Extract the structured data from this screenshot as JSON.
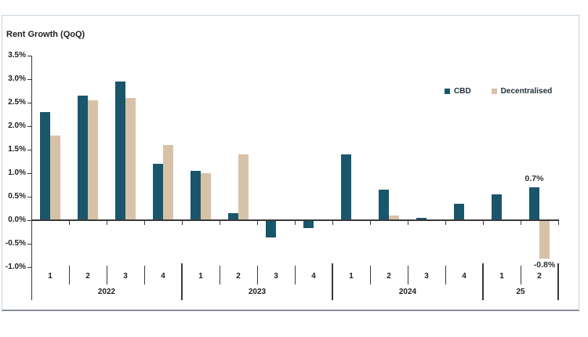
{
  "chart_data": {
    "type": "bar",
    "title": "Rent Growth (QoQ)",
    "ylabel": "Rent Growth (QoQ)",
    "ylim": [
      -1.0,
      3.5
    ],
    "ytick_step": 0.5,
    "ytick_labels": [
      "3.5%",
      "3.0%",
      "2.5%",
      "2.0%",
      "1.5%",
      "1.0%",
      "0.5%",
      "0.0%",
      "-0.5%",
      "-1.0%"
    ],
    "grid": false,
    "legend_position": "top-right",
    "groups": [
      {
        "year": "2022",
        "quarters": [
          "1",
          "2",
          "3",
          "4"
        ]
      },
      {
        "year": "2023",
        "quarters": [
          "1",
          "2",
          "3",
          "4"
        ]
      },
      {
        "year": "2024",
        "quarters": [
          "1",
          "2",
          "3",
          "4"
        ]
      },
      {
        "year": "25",
        "quarters": [
          "1",
          "2"
        ]
      }
    ],
    "series": [
      {
        "name": "CBD",
        "color": "#1a566b",
        "values": [
          2.3,
          2.65,
          2.95,
          1.2,
          1.05,
          0.15,
          -0.35,
          -0.15,
          1.4,
          0.65,
          0.05,
          0.35,
          0.55,
          0.7
        ]
      },
      {
        "name": "Decentralised",
        "color": "#d8c2a7",
        "values": [
          1.8,
          2.55,
          2.6,
          1.6,
          1.0,
          1.4,
          0,
          0,
          0,
          0.1,
          0,
          0,
          0,
          -0.8
        ]
      }
    ],
    "point_labels": [
      {
        "series": "CBD",
        "index": 13,
        "text": "0.7%",
        "position": "above"
      },
      {
        "series": "Decentralised",
        "index": 13,
        "text": "-0.8%",
        "position": "below"
      }
    ]
  },
  "colors": {
    "axis": "#3a3a3a",
    "panel_border": "#c9d5e2",
    "panel_border_bottom": "#8a9097",
    "background": "#ffffff"
  }
}
